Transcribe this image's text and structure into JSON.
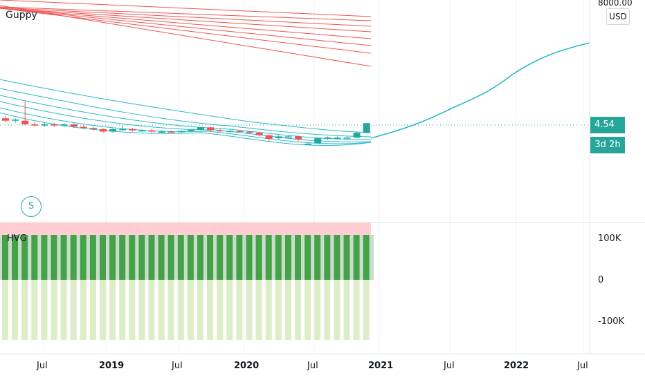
{
  "indicators": {
    "guppy": "Guppy",
    "hvg": "HVG"
  },
  "price_scale": {
    "top_label": "8000.00",
    "currency": "USD"
  },
  "badges": {
    "last_price": "4.54",
    "countdown": "3d 2h"
  },
  "marker": {
    "split": "S"
  },
  "volume_scale": [
    "100K",
    "0",
    "-100K"
  ],
  "time_axis": [
    {
      "label": "Jul",
      "bold": false
    },
    {
      "label": "2019",
      "bold": true
    },
    {
      "label": "Jul",
      "bold": false
    },
    {
      "label": "2020",
      "bold": true
    },
    {
      "label": "Jul",
      "bold": false
    },
    {
      "label": "2021",
      "bold": true
    },
    {
      "label": "Jul",
      "bold": false
    },
    {
      "label": "2022",
      "bold": true
    },
    {
      "label": "Jul",
      "bold": false
    }
  ],
  "colors": {
    "up": "#26a69a",
    "down": "#ef5350",
    "guppy_long": "#ef5350",
    "guppy_short": "#26b8c8",
    "volume_bar": "#4caf50",
    "volume_neg": "#dcedc8",
    "volume_band": "#ffcdd2"
  },
  "chart_data": {
    "type": "candlestick",
    "last_price": 4.54,
    "candles": [
      {
        "o": 5.1,
        "c": 4.9,
        "h": 5.3,
        "l": 4.8
      },
      {
        "o": 4.9,
        "c": 5.0,
        "h": 5.1,
        "l": 4.7
      },
      {
        "o": 4.9,
        "c": 4.6,
        "h": 6.5,
        "l": 4.5
      },
      {
        "o": 4.6,
        "c": 4.5,
        "h": 4.8,
        "l": 4.4
      },
      {
        "o": 4.5,
        "c": 4.6,
        "h": 4.7,
        "l": 4.4
      },
      {
        "o": 4.6,
        "c": 4.5,
        "h": 4.7,
        "l": 4.4
      },
      {
        "o": 4.5,
        "c": 4.6,
        "h": 4.7,
        "l": 4.4
      },
      {
        "o": 4.6,
        "c": 4.4,
        "h": 4.7,
        "l": 4.3
      },
      {
        "o": 4.4,
        "c": 4.3,
        "h": 4.5,
        "l": 4.2
      },
      {
        "o": 4.3,
        "c": 4.2,
        "h": 4.4,
        "l": 4.1
      },
      {
        "o": 4.2,
        "c": 4.0,
        "h": 4.3,
        "l": 3.9
      },
      {
        "o": 4.0,
        "c": 4.2,
        "h": 4.3,
        "l": 3.9
      },
      {
        "o": 4.2,
        "c": 4.2,
        "h": 4.5,
        "l": 4.1
      },
      {
        "o": 4.2,
        "c": 4.1,
        "h": 4.3,
        "l": 4.0
      },
      {
        "o": 4.1,
        "c": 4.1,
        "h": 4.2,
        "l": 4.0
      },
      {
        "o": 4.1,
        "c": 4.0,
        "h": 4.2,
        "l": 3.9
      },
      {
        "o": 4.0,
        "c": 4.0,
        "h": 4.1,
        "l": 3.9
      },
      {
        "o": 4.0,
        "c": 3.95,
        "h": 4.1,
        "l": 3.9
      },
      {
        "o": 3.95,
        "c": 4.05,
        "h": 4.1,
        "l": 3.9
      },
      {
        "o": 4.05,
        "c": 4.15,
        "h": 4.2,
        "l": 4.0
      },
      {
        "o": 4.15,
        "c": 4.35,
        "h": 4.4,
        "l": 4.1
      },
      {
        "o": 4.35,
        "c": 4.1,
        "h": 4.4,
        "l": 4.0
      },
      {
        "o": 4.1,
        "c": 4.05,
        "h": 4.2,
        "l": 4.0
      },
      {
        "o": 4.05,
        "c": 4.05,
        "h": 4.15,
        "l": 3.95
      },
      {
        "o": 4.05,
        "c": 4.0,
        "h": 4.1,
        "l": 3.9
      },
      {
        "o": 4.0,
        "c": 3.9,
        "h": 4.05,
        "l": 3.85
      },
      {
        "o": 3.9,
        "c": 3.7,
        "h": 3.95,
        "l": 3.6
      },
      {
        "o": 3.7,
        "c": 3.4,
        "h": 3.75,
        "l": 3.1
      },
      {
        "o": 3.45,
        "c": 3.6,
        "h": 3.7,
        "l": 3.35
      },
      {
        "o": 3.6,
        "c": 3.6,
        "h": 3.7,
        "l": 3.5
      },
      {
        "o": 3.6,
        "c": 3.35,
        "h": 3.7,
        "l": 3.2
      },
      {
        "o": 3.0,
        "c": 3.0,
        "h": 3.1,
        "l": 2.9
      },
      {
        "o": 3.05,
        "c": 3.45,
        "h": 3.5,
        "l": 3.0
      },
      {
        "o": 3.4,
        "c": 3.5,
        "h": 3.6,
        "l": 3.3
      },
      {
        "o": 3.5,
        "c": 3.5,
        "h": 3.6,
        "l": 3.4
      },
      {
        "o": 3.5,
        "c": 3.5,
        "h": 3.6,
        "l": 3.4
      },
      {
        "o": 3.5,
        "c": 3.9,
        "h": 4.0,
        "l": 3.45
      },
      {
        "o": 3.9,
        "c": 4.7,
        "h": 4.7,
        "l": 3.85
      }
    ]
  }
}
